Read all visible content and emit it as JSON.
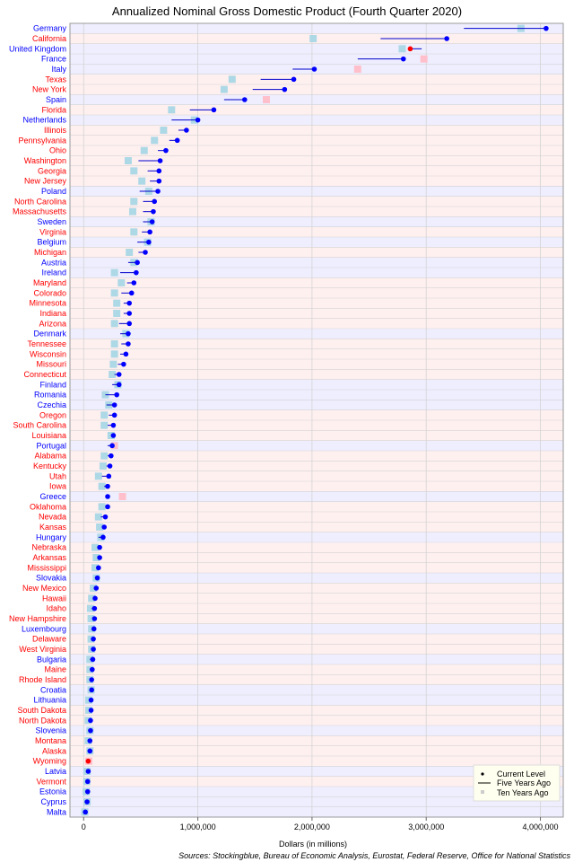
{
  "chart_data": {
    "type": "dot-range",
    "title": "Annualized Nominal Gross Domestic Product (Fourth Quarter 2020)",
    "xlabel": "Dollars (in millions)",
    "source": "Sources: Stockingblue, Bureau of Economic Analysis, Eurostat, Federal Reserve, Office for National Statistics",
    "xlim": [
      -120000,
      4200000
    ],
    "x_ticks": [
      {
        "value": 0,
        "label": "0"
      },
      {
        "value": 1000000,
        "label": "1,000,000"
      },
      {
        "value": 2000000,
        "label": "2,000,000"
      },
      {
        "value": 3000000,
        "label": "3,000,000"
      },
      {
        "value": 4000000,
        "label": "4,000,000"
      }
    ],
    "grid": true,
    "legend_position": "bottom-right",
    "legend": {
      "current": "Current Level",
      "five": "Five Years Ago",
      "ten": "Ten Years Ago"
    },
    "colors": {
      "country_label": "#0000ff",
      "state_label": "#ff0000",
      "country_band": "#eeeeff",
      "state_band": "#fff0f0",
      "current_dot": "#0000ff",
      "decline_dot": "#ff0000",
      "five_line": "#0000cc",
      "ten_up": "#add8e6",
      "ten_down": "#ffc0cb",
      "gridline": "#d3d3d3"
    },
    "rows": [
      {
        "name": "Germany",
        "kind": "country",
        "current": 4050000,
        "five_years_ago": 3330000,
        "ten_years_ago": 3830000
      },
      {
        "name": "California",
        "kind": "state",
        "current": 3180000,
        "five_years_ago": 2600000,
        "ten_years_ago": 2010000
      },
      {
        "name": "United Kingdom",
        "kind": "country",
        "current": 2860000,
        "five_years_ago": 2960000,
        "ten_years_ago": 2790000
      },
      {
        "name": "France",
        "kind": "country",
        "current": 2800000,
        "five_years_ago": 2400000,
        "ten_years_ago": 2980000
      },
      {
        "name": "Italy",
        "kind": "country",
        "current": 2020000,
        "five_years_ago": 1830000,
        "ten_years_ago": 2400000
      },
      {
        "name": "Texas",
        "kind": "state",
        "current": 1840000,
        "five_years_ago": 1550000,
        "ten_years_ago": 1300000
      },
      {
        "name": "New York",
        "kind": "state",
        "current": 1760000,
        "five_years_ago": 1480000,
        "ten_years_ago": 1230000
      },
      {
        "name": "Spain",
        "kind": "country",
        "current": 1410000,
        "five_years_ago": 1230000,
        "ten_years_ago": 1600000
      },
      {
        "name": "Florida",
        "kind": "state",
        "current": 1140000,
        "five_years_ago": 930000,
        "ten_years_ago": 770000
      },
      {
        "name": "Netherlands",
        "kind": "country",
        "current": 1000000,
        "five_years_ago": 770000,
        "ten_years_ago": 970000
      },
      {
        "name": "Illinois",
        "kind": "state",
        "current": 900000,
        "five_years_ago": 830000,
        "ten_years_ago": 700000
      },
      {
        "name": "Pennsylvania",
        "kind": "state",
        "current": 820000,
        "five_years_ago": 750000,
        "ten_years_ago": 620000
      },
      {
        "name": "Ohio",
        "kind": "state",
        "current": 720000,
        "five_years_ago": 650000,
        "ten_years_ago": 530000
      },
      {
        "name": "Washington",
        "kind": "state",
        "current": 670000,
        "five_years_ago": 480000,
        "ten_years_ago": 390000
      },
      {
        "name": "Georgia",
        "kind": "state",
        "current": 660000,
        "five_years_ago": 560000,
        "ten_years_ago": 440000
      },
      {
        "name": "New Jersey",
        "kind": "state",
        "current": 660000,
        "five_years_ago": 580000,
        "ten_years_ago": 510000
      },
      {
        "name": "Poland",
        "kind": "country",
        "current": 650000,
        "five_years_ago": 490000,
        "ten_years_ago": 570000
      },
      {
        "name": "North Carolina",
        "kind": "state",
        "current": 620000,
        "five_years_ago": 520000,
        "ten_years_ago": 440000
      },
      {
        "name": "Massachusetts",
        "kind": "state",
        "current": 610000,
        "five_years_ago": 520000,
        "ten_years_ago": 430000
      },
      {
        "name": "Sweden",
        "kind": "country",
        "current": 600000,
        "five_years_ago": 520000,
        "ten_years_ago": 590000
      },
      {
        "name": "Virginia",
        "kind": "state",
        "current": 580000,
        "five_years_ago": 510000,
        "ten_years_ago": 440000
      },
      {
        "name": "Belgium",
        "kind": "country",
        "current": 570000,
        "five_years_ago": 470000,
        "ten_years_ago": 560000
      },
      {
        "name": "Michigan",
        "kind": "state",
        "current": 540000,
        "five_years_ago": 480000,
        "ten_years_ago": 400000
      },
      {
        "name": "Austria",
        "kind": "country",
        "current": 470000,
        "five_years_ago": 390000,
        "ten_years_ago": 440000
      },
      {
        "name": "Ireland",
        "kind": "country",
        "current": 460000,
        "five_years_ago": 320000,
        "ten_years_ago": 270000
      },
      {
        "name": "Maryland",
        "kind": "state",
        "current": 440000,
        "five_years_ago": 380000,
        "ten_years_ago": 330000
      },
      {
        "name": "Colorado",
        "kind": "state",
        "current": 420000,
        "five_years_ago": 330000,
        "ten_years_ago": 270000
      },
      {
        "name": "Minnesota",
        "kind": "state",
        "current": 400000,
        "five_years_ago": 350000,
        "ten_years_ago": 290000
      },
      {
        "name": "Indiana",
        "kind": "state",
        "current": 400000,
        "five_years_ago": 350000,
        "ten_years_ago": 290000
      },
      {
        "name": "Arizona",
        "kind": "state",
        "current": 400000,
        "five_years_ago": 310000,
        "ten_years_ago": 270000
      },
      {
        "name": "Denmark",
        "kind": "country",
        "current": 390000,
        "five_years_ago": 320000,
        "ten_years_ago": 370000
      },
      {
        "name": "Tennessee",
        "kind": "state",
        "current": 390000,
        "five_years_ago": 330000,
        "ten_years_ago": 270000
      },
      {
        "name": "Wisconsin",
        "kind": "state",
        "current": 370000,
        "five_years_ago": 320000,
        "ten_years_ago": 270000
      },
      {
        "name": "Missouri",
        "kind": "state",
        "current": 350000,
        "five_years_ago": 300000,
        "ten_years_ago": 260000
      },
      {
        "name": "Connecticut",
        "kind": "state",
        "current": 310000,
        "five_years_ago": 270000,
        "ten_years_ago": 250000
      },
      {
        "name": "Finland",
        "kind": "country",
        "current": 310000,
        "five_years_ago": 250000,
        "ten_years_ago": 300000
      },
      {
        "name": "Romania",
        "kind": "country",
        "current": 290000,
        "five_years_ago": 190000,
        "ten_years_ago": 190000
      },
      {
        "name": "Czechia",
        "kind": "country",
        "current": 270000,
        "five_years_ago": 200000,
        "ten_years_ago": 220000
      },
      {
        "name": "Oregon",
        "kind": "state",
        "current": 270000,
        "five_years_ago": 220000,
        "ten_years_ago": 180000
      },
      {
        "name": "South Carolina",
        "kind": "state",
        "current": 260000,
        "five_years_ago": 210000,
        "ten_years_ago": 180000
      },
      {
        "name": "Louisiana",
        "kind": "state",
        "current": 260000,
        "five_years_ago": 240000,
        "ten_years_ago": 240000
      },
      {
        "name": "Portugal",
        "kind": "country",
        "current": 250000,
        "five_years_ago": 210000,
        "ten_years_ago": 270000
      },
      {
        "name": "Alabama",
        "kind": "state",
        "current": 240000,
        "five_years_ago": 210000,
        "ten_years_ago": 180000
      },
      {
        "name": "Kentucky",
        "kind": "state",
        "current": 230000,
        "five_years_ago": 200000,
        "ten_years_ago": 170000
      },
      {
        "name": "Utah",
        "kind": "state",
        "current": 220000,
        "five_years_ago": 160000,
        "ten_years_ago": 130000
      },
      {
        "name": "Iowa",
        "kind": "state",
        "current": 210000,
        "five_years_ago": 180000,
        "ten_years_ago": 160000
      },
      {
        "name": "Greece",
        "kind": "country",
        "current": 210000,
        "five_years_ago": 200000,
        "ten_years_ago": 340000
      },
      {
        "name": "Oklahoma",
        "kind": "state",
        "current": 210000,
        "five_years_ago": 190000,
        "ten_years_ago": 160000
      },
      {
        "name": "Nevada",
        "kind": "state",
        "current": 190000,
        "five_years_ago": 150000,
        "ten_years_ago": 130000
      },
      {
        "name": "Kansas",
        "kind": "state",
        "current": 180000,
        "five_years_ago": 160000,
        "ten_years_ago": 140000
      },
      {
        "name": "Hungary",
        "kind": "country",
        "current": 170000,
        "five_years_ago": 130000,
        "ten_years_ago": 150000
      },
      {
        "name": "Nebraska",
        "kind": "state",
        "current": 140000,
        "five_years_ago": 120000,
        "ten_years_ago": 100000
      },
      {
        "name": "Arkansas",
        "kind": "state",
        "current": 140000,
        "five_years_ago": 120000,
        "ten_years_ago": 110000
      },
      {
        "name": "Mississippi",
        "kind": "state",
        "current": 130000,
        "five_years_ago": 110000,
        "ten_years_ago": 100000
      },
      {
        "name": "Slovakia",
        "kind": "country",
        "current": 120000,
        "five_years_ago": 100000,
        "ten_years_ago": 110000
      },
      {
        "name": "New Mexico",
        "kind": "state",
        "current": 110000,
        "five_years_ago": 95000,
        "ten_years_ago": 85000
      },
      {
        "name": "Hawaii",
        "kind": "state",
        "current": 100000,
        "five_years_ago": 85000,
        "ten_years_ago": 70000
      },
      {
        "name": "Idaho",
        "kind": "state",
        "current": 95000,
        "five_years_ago": 70000,
        "ten_years_ago": 60000
      },
      {
        "name": "New Hampshire",
        "kind": "state",
        "current": 95000,
        "five_years_ago": 80000,
        "ten_years_ago": 65000
      },
      {
        "name": "Luxembourg",
        "kind": "country",
        "current": 90000,
        "five_years_ago": 70000,
        "ten_years_ago": 70000
      },
      {
        "name": "Delaware",
        "kind": "state",
        "current": 85000,
        "five_years_ago": 75000,
        "ten_years_ago": 65000
      },
      {
        "name": "West Virginia",
        "kind": "state",
        "current": 85000,
        "five_years_ago": 75000,
        "ten_years_ago": 70000
      },
      {
        "name": "Bulgaria",
        "kind": "country",
        "current": 80000,
        "five_years_ago": 55000,
        "ten_years_ago": 55000
      },
      {
        "name": "Maine",
        "kind": "state",
        "current": 75000,
        "five_years_ago": 60000,
        "ten_years_ago": 55000
      },
      {
        "name": "Rhode Island",
        "kind": "state",
        "current": 70000,
        "five_years_ago": 60000,
        "ten_years_ago": 55000
      },
      {
        "name": "Croatia",
        "kind": "country",
        "current": 70000,
        "five_years_ago": 55000,
        "ten_years_ago": 65000
      },
      {
        "name": "Lithuania",
        "kind": "country",
        "current": 65000,
        "five_years_ago": 45000,
        "ten_years_ago": 45000
      },
      {
        "name": "South Dakota",
        "kind": "state",
        "current": 65000,
        "five_years_ago": 50000,
        "ten_years_ago": 45000
      },
      {
        "name": "North Dakota",
        "kind": "state",
        "current": 60000,
        "five_years_ago": 55000,
        "ten_years_ago": 40000
      },
      {
        "name": "Slovenia",
        "kind": "country",
        "current": 60000,
        "five_years_ago": 45000,
        "ten_years_ago": 55000
      },
      {
        "name": "Montana",
        "kind": "state",
        "current": 55000,
        "five_years_ago": 48000,
        "ten_years_ago": 40000
      },
      {
        "name": "Alaska",
        "kind": "state",
        "current": 55000,
        "five_years_ago": 52000,
        "ten_years_ago": 55000
      },
      {
        "name": "Wyoming",
        "kind": "state",
        "current": 40000,
        "five_years_ago": 42000,
        "ten_years_ago": 45000
      },
      {
        "name": "Latvia",
        "kind": "country",
        "current": 40000,
        "five_years_ago": 30000,
        "ten_years_ago": 30000
      },
      {
        "name": "Vermont",
        "kind": "state",
        "current": 35000,
        "five_years_ago": 32000,
        "ten_years_ago": 28000
      },
      {
        "name": "Estonia",
        "kind": "country",
        "current": 35000,
        "five_years_ago": 25000,
        "ten_years_ago": 23000
      },
      {
        "name": "Cyprus",
        "kind": "country",
        "current": 30000,
        "five_years_ago": 22000,
        "ten_years_ago": 30000
      },
      {
        "name": "Malta",
        "kind": "country",
        "current": 15000,
        "five_years_ago": 10000,
        "ten_years_ago": 10000
      }
    ]
  }
}
